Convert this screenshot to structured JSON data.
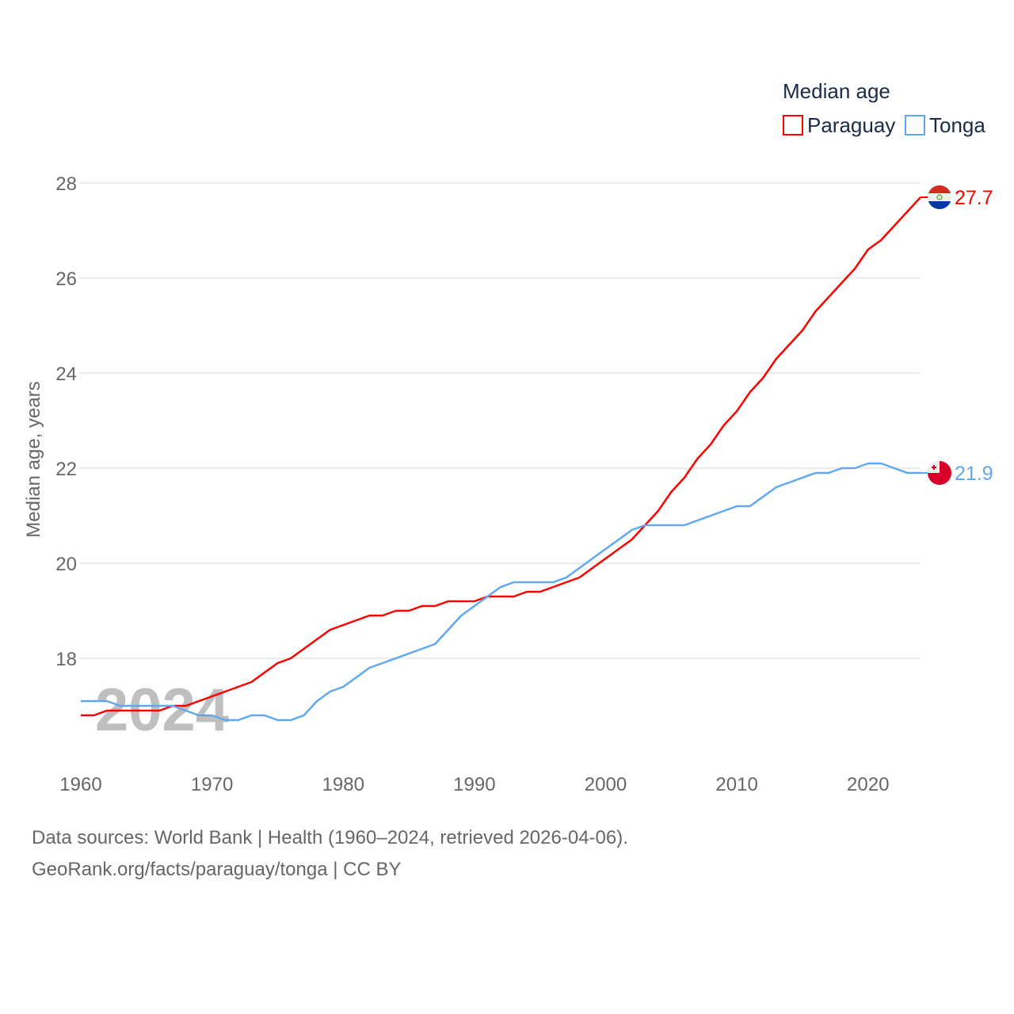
{
  "chart_data": {
    "type": "line",
    "title": "",
    "xlabel": "",
    "ylabel": "Median age, years",
    "xlim": [
      1960,
      2024
    ],
    "ylim": [
      16.2,
      28.3
    ],
    "x_ticks": [
      "1960",
      "1970",
      "1980",
      "1990",
      "2000",
      "2010",
      "2020"
    ],
    "y_ticks": [
      "18",
      "20",
      "22",
      "24",
      "26",
      "28"
    ],
    "grid": true,
    "legend_title": "Median age",
    "legend_position": "top-right",
    "year_watermark": "2024",
    "x": [
      1960,
      1961,
      1962,
      1963,
      1964,
      1965,
      1966,
      1967,
      1968,
      1969,
      1970,
      1971,
      1972,
      1973,
      1974,
      1975,
      1976,
      1977,
      1978,
      1979,
      1980,
      1981,
      1982,
      1983,
      1984,
      1985,
      1986,
      1987,
      1988,
      1989,
      1990,
      1991,
      1992,
      1993,
      1994,
      1995,
      1996,
      1997,
      1998,
      1999,
      2000,
      2001,
      2002,
      2003,
      2004,
      2005,
      2006,
      2007,
      2008,
      2009,
      2010,
      2011,
      2012,
      2013,
      2014,
      2015,
      2016,
      2017,
      2018,
      2019,
      2020,
      2021,
      2022,
      2023,
      2024
    ],
    "series": [
      {
        "name": "Paraguay",
        "color": "#ff0000",
        "end_label": "27.7",
        "values": [
          16.8,
          16.8,
          16.9,
          16.9,
          16.9,
          16.9,
          16.9,
          17.0,
          17.0,
          17.1,
          17.2,
          17.3,
          17.4,
          17.5,
          17.7,
          17.9,
          18.0,
          18.2,
          18.4,
          18.6,
          18.7,
          18.8,
          18.9,
          18.9,
          19.0,
          19.0,
          19.1,
          19.1,
          19.2,
          19.2,
          19.2,
          19.3,
          19.3,
          19.3,
          19.4,
          19.4,
          19.5,
          19.6,
          19.7,
          19.9,
          20.1,
          20.3,
          20.5,
          20.8,
          21.1,
          21.5,
          21.8,
          22.2,
          22.5,
          22.9,
          23.2,
          23.6,
          23.9,
          24.3,
          24.6,
          24.9,
          25.3,
          25.6,
          25.9,
          26.2,
          26.6,
          26.8,
          27.1,
          27.4,
          27.7
        ]
      },
      {
        "name": "Tonga",
        "color": "#5fa8f0",
        "end_label": "21.9",
        "values": [
          17.1,
          17.1,
          17.1,
          17.0,
          17.0,
          17.0,
          17.0,
          17.0,
          16.9,
          16.8,
          16.8,
          16.7,
          16.7,
          16.8,
          16.8,
          16.7,
          16.7,
          16.8,
          17.1,
          17.3,
          17.4,
          17.6,
          17.8,
          17.9,
          18.0,
          18.1,
          18.2,
          18.3,
          18.6,
          18.9,
          19.1,
          19.3,
          19.5,
          19.6,
          19.6,
          19.6,
          19.6,
          19.7,
          19.9,
          20.1,
          20.3,
          20.5,
          20.7,
          20.8,
          20.8,
          20.8,
          20.8,
          20.9,
          21.0,
          21.1,
          21.2,
          21.2,
          21.4,
          21.6,
          21.7,
          21.8,
          21.9,
          21.9,
          22.0,
          22.0,
          22.1,
          22.1,
          22.0,
          21.9,
          21.9
        ]
      }
    ]
  },
  "footer": {
    "line1": "Data sources: World Bank | Health (1960–2024, retrieved 2026-04-06).",
    "line2": "GeoRank.org/facts/paraguay/tonga | CC BY"
  }
}
